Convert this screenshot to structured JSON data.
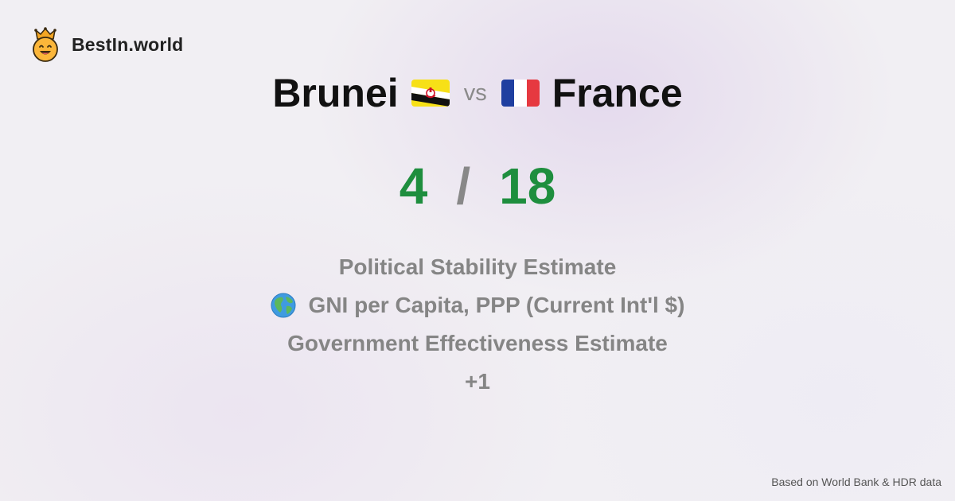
{
  "brand": {
    "name": "BestIn.world",
    "icon": "crowned-smiley-icon"
  },
  "comparison": {
    "left": {
      "name": "Brunei",
      "flag_icon": "brunei-flag-icon"
    },
    "vs_label": "vs",
    "right": {
      "name": "France",
      "flag_icon": "france-flag-icon"
    }
  },
  "score": {
    "left": "4",
    "separator": "/",
    "right": "18",
    "color": "#1e8e3e"
  },
  "metrics": {
    "items": [
      {
        "label": "Political Stability Estimate"
      },
      {
        "icon": "globe-icon",
        "label": "GNI per Capita, PPP (Current Int'l $)"
      },
      {
        "label": "Government Effectiveness Estimate"
      },
      {
        "label": "+1"
      }
    ]
  },
  "footer": {
    "source": "Based on World Bank & HDR data"
  }
}
